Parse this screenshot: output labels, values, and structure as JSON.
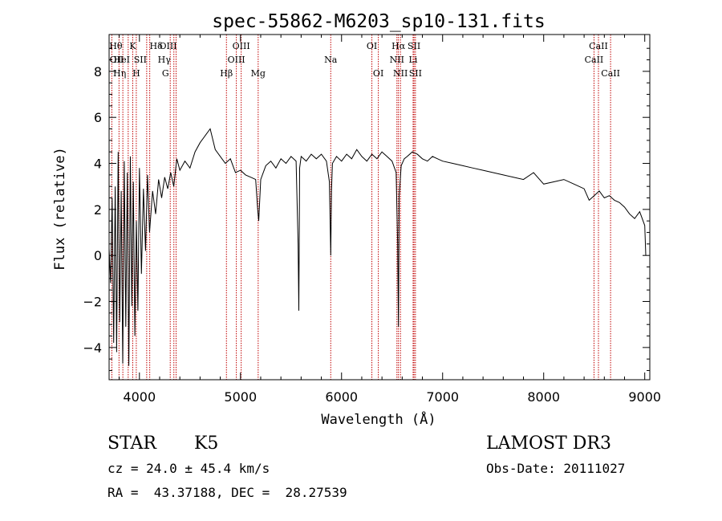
{
  "chart_data": {
    "type": "line",
    "title": "spec-55862-M6203_sp10-131.fits",
    "xlabel": "Wavelength (Å)",
    "ylabel": "Flux (relative)",
    "xlim": [
      3700,
      9050
    ],
    "ylim": [
      -5.4,
      9.6
    ],
    "xticks": [
      4000,
      5000,
      6000,
      7000,
      8000,
      9000
    ],
    "yticks": [
      -4,
      -2,
      0,
      2,
      4,
      6,
      8
    ],
    "ytick_labels": [
      "−4",
      "−2",
      "0",
      "2",
      "4",
      "6",
      "8"
    ],
    "line_color": "#000000",
    "marker_color": "#c00000",
    "series": [
      {
        "name": "flux",
        "x": [
          3700,
          3715,
          3730,
          3745,
          3760,
          3775,
          3790,
          3805,
          3820,
          3835,
          3850,
          3865,
          3880,
          3895,
          3910,
          3925,
          3940,
          3955,
          3970,
          3985,
          4000,
          4020,
          4040,
          4060,
          4080,
          4100,
          4130,
          4160,
          4190,
          4220,
          4250,
          4280,
          4310,
          4340,
          4370,
          4400,
          4450,
          4500,
          4550,
          4600,
          4650,
          4700,
          4750,
          4800,
          4850,
          4900,
          4950,
          5000,
          5050,
          5100,
          5150,
          5170,
          5180,
          5200,
          5250,
          5300,
          5350,
          5400,
          5450,
          5500,
          5550,
          5570,
          5577,
          5585,
          5600,
          5650,
          5700,
          5750,
          5800,
          5850,
          5880,
          5893,
          5900,
          5910,
          5950,
          6000,
          6050,
          6100,
          6150,
          6200,
          6250,
          6300,
          6350,
          6400,
          6450,
          6500,
          6540,
          6555,
          6563,
          6570,
          6590,
          6620,
          6650,
          6700,
          6750,
          6800,
          6850,
          6900,
          6950,
          7000,
          7100,
          7200,
          7300,
          7400,
          7500,
          7600,
          7700,
          7800,
          7900,
          8000,
          8100,
          8200,
          8300,
          8400,
          8450,
          8500,
          8550,
          8600,
          8650,
          8700,
          8750,
          8800,
          8850,
          8900,
          8950,
          9000,
          9010
        ],
        "y": [
          0.3,
          -1.2,
          2.5,
          -3.8,
          3.0,
          -4.2,
          4.5,
          -2.9,
          2.8,
          -4.7,
          4.1,
          -3.1,
          3.6,
          -4.8,
          4.3,
          -2.2,
          3.2,
          -3.5,
          1.5,
          -2.4,
          3.8,
          -0.8,
          2.9,
          0.2,
          3.5,
          1.0,
          2.8,
          1.8,
          3.3,
          2.5,
          3.4,
          2.9,
          3.6,
          3.0,
          4.2,
          3.7,
          4.1,
          3.8,
          4.5,
          4.9,
          5.2,
          5.5,
          4.6,
          4.3,
          4.0,
          4.2,
          3.6,
          3.7,
          3.5,
          3.4,
          3.3,
          2.0,
          1.5,
          3.3,
          3.9,
          4.1,
          3.8,
          4.2,
          4.0,
          4.3,
          4.1,
          0.5,
          -2.4,
          3.8,
          4.3,
          4.1,
          4.4,
          4.2,
          4.4,
          4.1,
          3.2,
          0.0,
          2.8,
          4.0,
          4.3,
          4.1,
          4.4,
          4.2,
          4.6,
          4.3,
          4.1,
          4.4,
          4.2,
          4.5,
          4.3,
          4.1,
          3.6,
          0.5,
          -3.1,
          2.6,
          3.9,
          4.2,
          4.3,
          4.5,
          4.4,
          4.2,
          4.1,
          4.3,
          4.2,
          4.1,
          4.0,
          3.9,
          3.8,
          3.7,
          3.6,
          3.5,
          3.4,
          3.3,
          3.6,
          3.1,
          3.2,
          3.3,
          3.1,
          2.9,
          2.4,
          2.6,
          2.8,
          2.5,
          2.6,
          2.4,
          2.3,
          2.1,
          1.8,
          1.6,
          1.9,
          1.3,
          0.0
        ]
      }
    ],
    "line_markers": [
      {
        "label": "Hθ",
        "x": 3798,
        "row": 1,
        "dx": -4
      },
      {
        "label": "OII",
        "x": 3727,
        "row": 2,
        "dx": 6
      },
      {
        "label": "Hη",
        "x": 3836,
        "row": 3,
        "dx": -4
      },
      {
        "label": "HeI",
        "x": 3889,
        "row": 2,
        "dx": -8
      },
      {
        "label": "K",
        "x": 3934,
        "row": 1,
        "dx": 0
      },
      {
        "label": "H",
        "x": 3969,
        "row": 3,
        "dx": 0
      },
      {
        "label": "SII",
        "x": 4072,
        "row": 2,
        "dx": -8
      },
      {
        "label": "Hδ",
        "x": 4102,
        "row": 1,
        "dx": 8
      },
      {
        "label": "OIII",
        "x": 4363,
        "row": 1,
        "dx": -10
      },
      {
        "label": "Hγ",
        "x": 4341,
        "row": 2,
        "dx": -12
      },
      {
        "label": "G",
        "x": 4305,
        "row": 3,
        "dx": -6
      },
      {
        "label": "Hβ",
        "x": 4861,
        "row": 3,
        "dx": 0
      },
      {
        "label": "OIII",
        "x": 5007,
        "row": 1,
        "dx": 0
      },
      {
        "label": "OIII",
        "x": 4959,
        "row": 2,
        "dx": 0
      },
      {
        "label": "Mg",
        "x": 5175,
        "row": 3,
        "dx": 0
      },
      {
        "label": "Na",
        "x": 5893,
        "row": 2,
        "dx": 0
      },
      {
        "label": "OI",
        "x": 6300,
        "row": 1,
        "dx": 0
      },
      {
        "label": "OI",
        "x": 6364,
        "row": 3,
        "dx": 0
      },
      {
        "label": "Hα",
        "x": 6563,
        "row": 1,
        "dx": 0
      },
      {
        "label": "NII",
        "x": 6548,
        "row": 2,
        "dx": 0
      },
      {
        "label": "NII",
        "x": 6583,
        "row": 3,
        "dx": 0
      },
      {
        "label": "SII",
        "x": 6717,
        "row": 1,
        "dx": 0
      },
      {
        "label": "Li",
        "x": 6708,
        "row": 2,
        "dx": 0
      },
      {
        "label": "SII",
        "x": 6731,
        "row": 3,
        "dx": 0
      },
      {
        "label": "CaII",
        "x": 8542,
        "row": 1,
        "dx": 0
      },
      {
        "label": "CaII",
        "x": 8498,
        "row": 2,
        "dx": 0
      },
      {
        "label": "CaII",
        "x": 8662,
        "row": 3,
        "dx": 0
      }
    ]
  },
  "info": {
    "object_class": "STAR",
    "subclass": "K5",
    "survey": "LAMOST DR3",
    "redshift_line": "cz = 24.0 ± 45.4 km/s",
    "obs_date_line": "Obs-Date: 20111027",
    "coords_line": "RA =  43.37188, DEC =  28.27539"
  }
}
